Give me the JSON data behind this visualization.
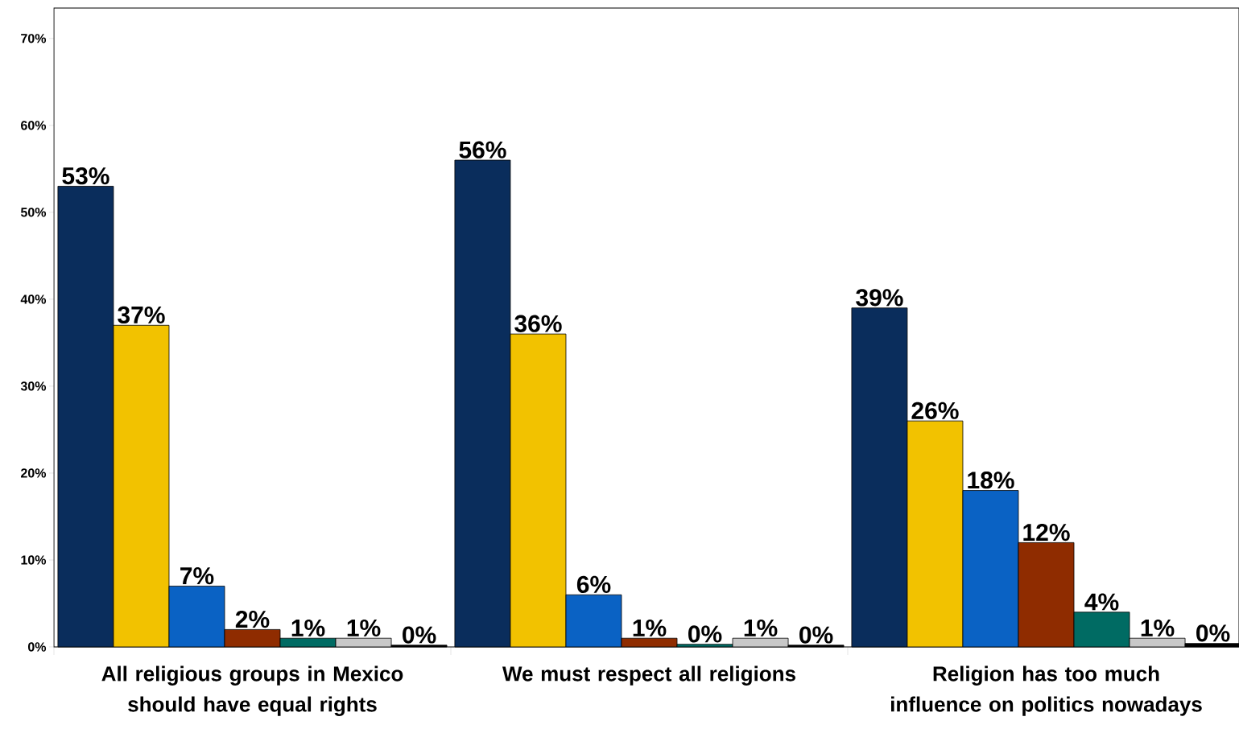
{
  "chart_data": {
    "type": "bar",
    "categories": [
      "All religious groups in Mexico should have equal rights",
      "We must respect all religions",
      "Religion has too much influence on politics nowadays"
    ],
    "series": [
      {
        "color": "#0a2d5c",
        "values": [
          53,
          56,
          39
        ],
        "value_labels": [
          "53%",
          "56%",
          "39%"
        ]
      },
      {
        "color": "#f2c200",
        "values": [
          37,
          36,
          26
        ],
        "value_labels": [
          "37%",
          "36%",
          "26%"
        ]
      },
      {
        "color": "#0a62c4",
        "values": [
          7,
          6,
          18
        ],
        "value_labels": [
          "7%",
          "6%",
          "18%"
        ]
      },
      {
        "color": "#8f2c00",
        "values": [
          2,
          1,
          12
        ],
        "value_labels": [
          "2%",
          "1%",
          "12%"
        ]
      },
      {
        "color": "#006b63",
        "values": [
          1,
          0.3,
          4
        ],
        "value_labels": [
          "1%",
          "0%",
          "4%"
        ]
      },
      {
        "color": "#c8c8c8",
        "values": [
          1,
          1,
          1
        ],
        "value_labels": [
          "1%",
          "1%",
          "1%"
        ]
      },
      {
        "color": "#000000",
        "values": [
          0.2,
          0.2,
          0.4
        ],
        "value_labels": [
          "0%",
          "0%",
          "0%"
        ]
      }
    ],
    "ylim": [
      0,
      73.5
    ],
    "yticks": [
      {
        "value": 0,
        "label": "0%"
      },
      {
        "value": 10,
        "label": "10%"
      },
      {
        "value": 20,
        "label": "20%"
      },
      {
        "value": 30,
        "label": "30%"
      },
      {
        "value": 40,
        "label": "40%"
      },
      {
        "value": 50,
        "label": "50%"
      },
      {
        "value": 60,
        "label": "60%"
      },
      {
        "value": 70,
        "label": "70%"
      }
    ]
  }
}
